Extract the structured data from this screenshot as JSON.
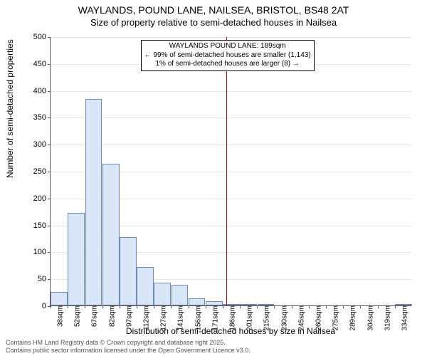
{
  "title1": "WAYLANDS, POUND LANE, NAILSEA, BRISTOL, BS48 2AT",
  "title2": "Size of property relative to semi-detached houses in Nailsea",
  "ylabel": "Number of semi-detached properties",
  "xlabel": "Distribution of semi-detached houses by size in Nailsea",
  "footer1": "Contains HM Land Registry data © Crown copyright and database right 2025.",
  "footer2": "Contains public sector information licensed under the Open Government Licence v3.0.",
  "chart": {
    "type": "histogram",
    "ylim": [
      0,
      500
    ],
    "ytick_step": 50,
    "background_color": "#ffffff",
    "grid_color": "#555555",
    "grid_opacity": 0.15,
    "bar_fill": "#d9e6f7",
    "bar_border": "#6a8bc0",
    "refline_color": "#cc0000",
    "refline_x": 189,
    "x_start": 38,
    "x_step_label": 15,
    "bar_width_sqm": 15,
    "bars": [
      {
        "x": 38,
        "v": 25
      },
      {
        "x": 52,
        "v": 172
      },
      {
        "x": 67,
        "v": 383
      },
      {
        "x": 82,
        "v": 263
      },
      {
        "x": 97,
        "v": 127
      },
      {
        "x": 112,
        "v": 71
      },
      {
        "x": 127,
        "v": 43
      },
      {
        "x": 141,
        "v": 38
      },
      {
        "x": 156,
        "v": 13
      },
      {
        "x": 171,
        "v": 8
      },
      {
        "x": 186,
        "v": 3
      },
      {
        "x": 201,
        "v": 3
      },
      {
        "x": 215,
        "v": 2
      },
      {
        "x": 230,
        "v": 0
      },
      {
        "x": 245,
        "v": 0
      },
      {
        "x": 260,
        "v": 0
      },
      {
        "x": 275,
        "v": 0
      },
      {
        "x": 289,
        "v": 0
      },
      {
        "x": 304,
        "v": 0
      },
      {
        "x": 319,
        "v": 0
      },
      {
        "x": 334,
        "v": 2
      }
    ],
    "xticks": [
      "38sqm",
      "52sqm",
      "67sqm",
      "82sqm",
      "97sqm",
      "112sqm",
      "127sqm",
      "141sqm",
      "156sqm",
      "171sqm",
      "186sqm",
      "201sqm",
      "215sqm",
      "230sqm",
      "245sqm",
      "260sqm",
      "275sqm",
      "289sqm",
      "304sqm",
      "319sqm",
      "334sqm"
    ],
    "annot": {
      "line1": "WAYLANDS POUND LANE: 189sqm",
      "line2": "← 99% of semi-detached houses are smaller (1,143)",
      "line3": "1% of semi-detached houses are larger (8) →",
      "box_border": "#000000",
      "box_bg": "#ffffff",
      "fontsize": 10
    }
  }
}
